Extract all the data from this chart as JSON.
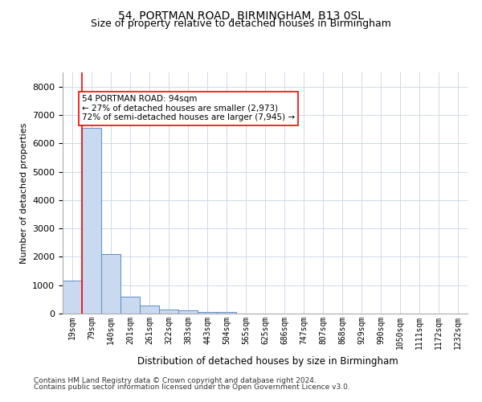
{
  "title": "54, PORTMAN ROAD, BIRMINGHAM, B13 0SL",
  "subtitle": "Size of property relative to detached houses in Birmingham",
  "xlabel": "Distribution of detached houses by size in Birmingham",
  "ylabel": "Number of detached properties",
  "property_label": "54 PORTMAN ROAD: 94sqm",
  "pct_smaller": "27% of detached houses are smaller (2,973)",
  "pct_larger": "72% of semi-detached houses are larger (7,945)",
  "categories": [
    "19sqm",
    "79sqm",
    "140sqm",
    "201sqm",
    "261sqm",
    "322sqm",
    "383sqm",
    "443sqm",
    "504sqm",
    "565sqm",
    "625sqm",
    "686sqm",
    "747sqm",
    "807sqm",
    "868sqm",
    "929sqm",
    "990sqm",
    "1050sqm",
    "1111sqm",
    "1172sqm",
    "1232sqm"
  ],
  "values": [
    1150,
    6550,
    2100,
    600,
    280,
    150,
    100,
    70,
    50,
    0,
    0,
    0,
    0,
    0,
    0,
    0,
    0,
    0,
    0,
    0,
    0
  ],
  "bar_color": "#c9d9f0",
  "bar_edge_color": "#5b8ec4",
  "red_line_bin": 1,
  "ylim": [
    0,
    8500
  ],
  "yticks": [
    0,
    1000,
    2000,
    3000,
    4000,
    5000,
    6000,
    7000,
    8000
  ],
  "footnote1": "Contains HM Land Registry data © Crown copyright and database right 2024.",
  "footnote2": "Contains public sector information licensed under the Open Government Licence v3.0.",
  "background_color": "#ffffff",
  "grid_color": "#c8d4e8",
  "title_fontsize": 10,
  "subtitle_fontsize": 9
}
